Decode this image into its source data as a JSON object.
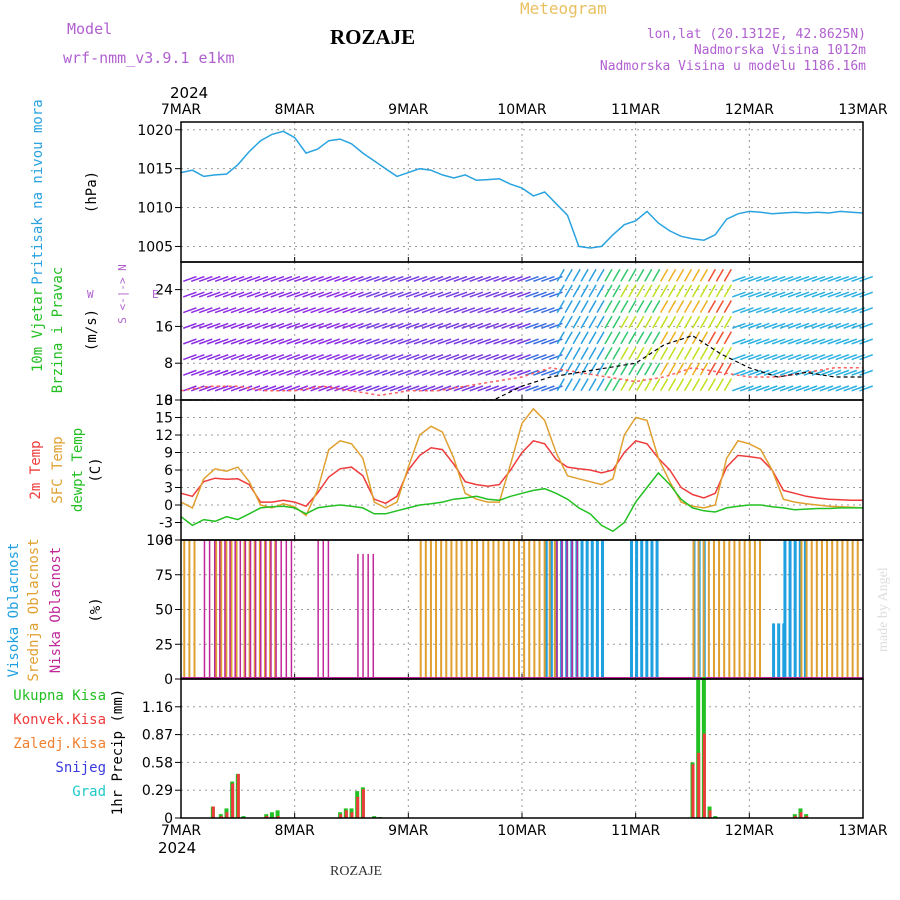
{
  "header": {
    "model_label": "Model",
    "model_name": "wrf-nmm_v3.9.1 e1km",
    "title": "ROZAJE",
    "meteogram": "Meteogram",
    "lonlat": "lon,lat (20.1312E, 42.8625N)",
    "elev": "Nadmorska Visina 1012m",
    "elev_model": "Nadmorska Visina u modelu 1186.16m",
    "year_top": "2024",
    "year_bottom": "2024",
    "footer": "ROZAJE",
    "credit": "made by Angel"
  },
  "colors": {
    "pressure": "#29a3e0",
    "t2m": "#ef3b3b",
    "sfc": "#e0a030",
    "dewpt": "#22c022",
    "high_cloud": "#1fa0e0",
    "mid_cloud": "#e0a030",
    "low_cloud": "#c0289a",
    "total_precip": "#22c022",
    "conv_precip": "#ef3b3b",
    "frz_precip": "#f08030",
    "snow": "#3a3ae0",
    "hail": "#20c8c8",
    "wind_purple": "#8a2be2"
  },
  "chart_data": [
    {
      "type": "line",
      "id": "pressure",
      "ylabel": [
        "Pritisak na nivou mora",
        "(hPa)"
      ],
      "x_tick_labels": [
        "7MAR",
        "8MAR",
        "9MAR",
        "10MAR",
        "11MAR",
        "12MAR",
        "13MAR"
      ],
      "ylim": [
        1003,
        1021
      ],
      "yticks": [
        1005,
        1010,
        1015,
        1020
      ],
      "grid": true,
      "x": [
        0,
        0.1,
        0.2,
        0.3,
        0.4,
        0.5,
        0.6,
        0.7,
        0.8,
        0.9,
        1.0,
        1.1,
        1.2,
        1.3,
        1.4,
        1.5,
        1.6,
        1.7,
        1.8,
        1.9,
        2.0,
        2.1,
        2.2,
        2.3,
        2.4,
        2.5,
        2.6,
        2.7,
        2.8,
        2.9,
        3.0,
        3.1,
        3.2,
        3.3,
        3.4,
        3.5,
        3.6,
        3.7,
        3.8,
        3.9,
        4.0,
        4.1,
        4.2,
        4.3,
        4.4,
        4.5,
        4.6,
        4.7,
        4.8,
        4.9,
        5.0,
        5.1,
        5.2,
        5.3,
        5.4,
        5.5,
        5.6,
        5.7,
        5.8,
        5.9,
        6.0
      ],
      "series": [
        {
          "values": [
            1014.5,
            1014.8,
            1014.0,
            1014.2,
            1014.3,
            1015.5,
            1017.2,
            1018.6,
            1019.4,
            1019.8,
            1019.0,
            1017.0,
            1017.5,
            1018.6,
            1018.8,
            1018.2,
            1017.0,
            1016.0,
            1015.0,
            1014.0,
            1014.5,
            1015.0,
            1014.8,
            1014.2,
            1013.8,
            1014.2,
            1013.5,
            1013.6,
            1013.7,
            1013.0,
            1012.5,
            1011.5,
            1012.0,
            1010.5,
            1009.0,
            1005.0,
            1004.8,
            1005.0,
            1006.5,
            1007.8,
            1008.3,
            1009.5,
            1008.0,
            1007.0,
            1006.3,
            1006.0,
            1005.8,
            1006.5,
            1008.5,
            1009.2,
            1009.5,
            1009.4,
            1009.2,
            1009.3,
            1009.4,
            1009.3,
            1009.4,
            1009.3,
            1009.5,
            1009.4,
            1009.3
          ]
        }
      ]
    },
    {
      "type": "wind_barbs",
      "id": "wind",
      "ylabel": [
        "10m Vjetar",
        "Brzina i Pravac",
        "(m/s)"
      ],
      "compass": [
        "N",
        "W",
        "E",
        "S"
      ],
      "compass_arrows": [
        "<-|->",
        "^",
        "v"
      ],
      "ylim": [
        0,
        30
      ],
      "yticks": [
        0,
        8,
        16,
        24
      ],
      "grid": true,
      "x": [
        0,
        0.25,
        0.5,
        0.75,
        1.0,
        1.25,
        1.5,
        1.75,
        2.0,
        2.25,
        2.5,
        2.75,
        3.0,
        3.25,
        3.5,
        3.75,
        4.0,
        4.25,
        4.5,
        4.75,
        5.0,
        5.25,
        5.5,
        5.75,
        6.0
      ],
      "series": [
        {
          "values": [
            2,
            3,
            3,
            2,
            2,
            3,
            2,
            1,
            2,
            2,
            3,
            4,
            5,
            7,
            6,
            5,
            4,
            5,
            7,
            6,
            5,
            5,
            6,
            7,
            7
          ],
          "style": "dashed-plus"
        },
        {
          "values": [
            0,
            0,
            0,
            0,
            0,
            0,
            0,
            0,
            0,
            0,
            0,
            0,
            3,
            5,
            6,
            7,
            8,
            12,
            14,
            10,
            7,
            5,
            6,
            5,
            5
          ]
        }
      ]
    },
    {
      "type": "line",
      "id": "temperature",
      "ylabel": [
        "2m Temp",
        "SFC Temp",
        "dewpt Temp",
        "(C)"
      ],
      "ylim": [
        -6,
        18
      ],
      "yticks": [
        -6,
        -3,
        0,
        3,
        6,
        9,
        12,
        15,
        18
      ],
      "grid": true,
      "x": [
        0,
        0.1,
        0.2,
        0.3,
        0.4,
        0.5,
        0.6,
        0.7,
        0.8,
        0.9,
        1.0,
        1.1,
        1.2,
        1.3,
        1.4,
        1.5,
        1.6,
        1.7,
        1.8,
        1.9,
        2.0,
        2.1,
        2.2,
        2.3,
        2.4,
        2.5,
        2.6,
        2.7,
        2.8,
        2.9,
        3.0,
        3.1,
        3.2,
        3.3,
        3.4,
        3.5,
        3.6,
        3.7,
        3.8,
        3.9,
        4.0,
        4.1,
        4.2,
        4.3,
        4.4,
        4.5,
        4.6,
        4.7,
        4.8,
        4.9,
        5.0,
        5.1,
        5.2,
        5.3,
        5.4,
        5.5,
        5.6,
        5.7,
        5.8,
        5.9,
        6.0
      ],
      "series": [
        {
          "name": "2m Temp",
          "values": [
            2.0,
            1.5,
            4.0,
            4.6,
            4.4,
            4.5,
            3.5,
            0.5,
            0.5,
            0.8,
            0.5,
            -0.2,
            2.0,
            4.8,
            6.2,
            6.5,
            5.0,
            1.0,
            0.3,
            1.5,
            6.0,
            8.5,
            9.8,
            9.5,
            7.0,
            4.0,
            3.5,
            3.2,
            3.5,
            6.0,
            9.0,
            11.0,
            10.5,
            7.8,
            6.5,
            6.2,
            6.0,
            5.5,
            6.0,
            9.0,
            11.0,
            10.5,
            8.0,
            6.0,
            3.0,
            1.8,
            1.2,
            2.0,
            6.5,
            8.5,
            8.3,
            8.0,
            6.0,
            2.5,
            2.0,
            1.5,
            1.2,
            1.0,
            0.9,
            0.8,
            0.8
          ]
        },
        {
          "name": "SFC Temp",
          "values": [
            0.5,
            -0.5,
            4.5,
            6.2,
            5.8,
            6.5,
            4.0,
            0,
            -0.5,
            0.2,
            -0.3,
            -1.8,
            2.5,
            9.5,
            11.0,
            10.5,
            8.0,
            0.5,
            -0.5,
            0.5,
            6.5,
            12.0,
            13.5,
            12.5,
            8.0,
            2.0,
            1.0,
            0.5,
            0.5,
            7.0,
            14.0,
            16.5,
            14.5,
            9.0,
            5.0,
            4.5,
            4.0,
            3.5,
            4.5,
            12.0,
            15.0,
            14.5,
            8.0,
            4.0,
            0.5,
            -0.2,
            -0.5,
            0,
            8.0,
            11.0,
            10.5,
            9.5,
            6.0,
            1.0,
            0.5,
            0.2,
            0,
            -0.2,
            -0.3,
            -0.4,
            -0.5
          ]
        },
        {
          "name": "dewpt Temp",
          "values": [
            -2.0,
            -3.5,
            -2.5,
            -2.8,
            -2.0,
            -2.5,
            -1.5,
            -0.5,
            -0.3,
            -0.2,
            -0.5,
            -1.5,
            -0.5,
            -0.2,
            0,
            -0.2,
            -0.5,
            -1.5,
            -1.5,
            -1.0,
            -0.5,
            0,
            0.2,
            0.5,
            1.0,
            1.2,
            1.5,
            1.0,
            0.8,
            1.5,
            2.0,
            2.5,
            2.8,
            2.0,
            1.0,
            -0.5,
            -1.5,
            -3.5,
            -4.5,
            -3.0,
            0.5,
            3.0,
            5.5,
            3.5,
            1.0,
            -0.5,
            -1.0,
            -1.2,
            -0.5,
            -0.2,
            0,
            0,
            -0.3,
            -0.5,
            -0.8,
            -0.7,
            -0.6,
            -0.6,
            -0.5,
            -0.5,
            -0.5
          ]
        }
      ]
    },
    {
      "type": "bar",
      "id": "clouds",
      "ylabel": [
        "Visoka Oblacnost",
        "Srednja Oblacnost",
        "Niska Oblacnost",
        "(%)"
      ],
      "ylim": [
        0,
        100
      ],
      "yticks": [
        0,
        25,
        50,
        75,
        100
      ],
      "grid": true,
      "x_range": [
        0,
        6
      ],
      "series": [
        {
          "name": "Visoka Oblacnost",
          "ranges": [
            [
              2.2,
              2.3,
              0
            ],
            [
              2.8,
              3.0,
              0
            ],
            [
              3.2,
              3.7,
              100
            ],
            [
              3.95,
              4.2,
              100
            ],
            [
              4.5,
              4.6,
              100
            ],
            [
              5.2,
              5.3,
              40
            ],
            [
              5.3,
              5.5,
              100
            ]
          ]
        },
        {
          "name": "Srednja Oblacnost",
          "ranges": [
            [
              0.02,
              0.15,
              100
            ],
            [
              0.3,
              0.5,
              100
            ],
            [
              0.55,
              0.85,
              100
            ],
            [
              2.1,
              2.6,
              100
            ],
            [
              2.65,
              3.3,
              100
            ],
            [
              4.5,
              5.1,
              100
            ],
            [
              5.45,
              5.98,
              100
            ]
          ]
        },
        {
          "name": "Niska Oblacnost",
          "ranges": [
            [
              0.2,
              1.0,
              100
            ],
            [
              1.2,
              1.3,
              100
            ],
            [
              1.55,
              1.7,
              90
            ],
            [
              3.3,
              3.5,
              100
            ]
          ]
        }
      ]
    },
    {
      "type": "bar",
      "id": "precip",
      "ylabel": [
        "1hr Precip (mm)"
      ],
      "ylim": [
        0,
        1.45
      ],
      "yticks": [
        0,
        0.29,
        0.58,
        0.87,
        1.16
      ],
      "grid": true,
      "legend": [
        "Ukupna Kisa",
        "Konvek.Kisa",
        "Zaledj.Kisa",
        "Snijeg",
        "Grad"
      ],
      "x": [
        0.28,
        0.35,
        0.4,
        0.45,
        0.5,
        0.55,
        0.75,
        0.8,
        0.85,
        1.4,
        1.45,
        1.5,
        1.55,
        1.6,
        1.7,
        1.75,
        4.5,
        4.55,
        4.6,
        4.65,
        4.7,
        5.4,
        5.45,
        5.5
      ],
      "series": [
        {
          "name": "Ukupna Kisa",
          "values": [
            0.12,
            0.04,
            0.1,
            0.38,
            0.46,
            0.02,
            0.04,
            0.06,
            0.08,
            0.06,
            0.1,
            0.1,
            0.28,
            0.32,
            0.02,
            0.01,
            0.58,
            1.44,
            1.47,
            0.12,
            0.02,
            0.04,
            0.1,
            0.04
          ]
        },
        {
          "name": "Konvek.Kisa",
          "values": [
            0.12,
            0.02,
            0.06,
            0.36,
            0.46,
            0,
            0.02,
            0,
            0.02,
            0.04,
            0.08,
            0.06,
            0.22,
            0.3,
            0,
            0,
            0.56,
            0.68,
            0.88,
            0.08,
            0,
            0.02,
            0.06,
            0.02
          ]
        }
      ]
    }
  ]
}
